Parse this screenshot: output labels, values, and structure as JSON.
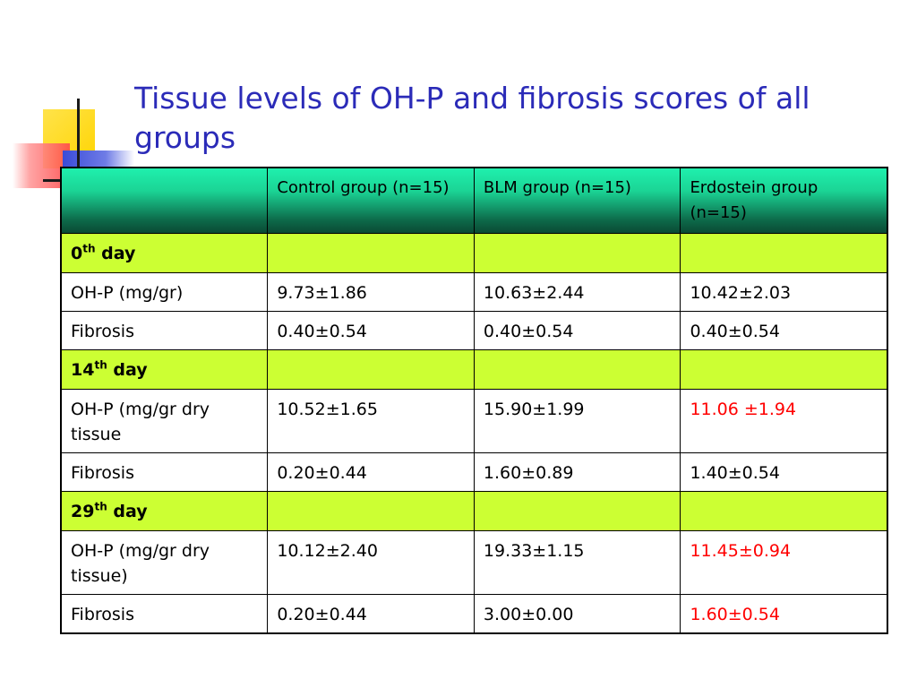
{
  "slide": {
    "title": "Tissue levels of OH-P and fibrosis scores of all groups"
  },
  "table": {
    "headers": [
      "",
      "Control group (n=15)",
      "BLM group (n=15)",
      "Erdostein group (n=15)"
    ],
    "sections": [
      {
        "day_number": "0",
        "day_suffix": "th",
        "day_word": "day",
        "rows": [
          {
            "label": "OH-P (mg/gr)",
            "control": "9.73±1.86",
            "blm": "10.63±2.44",
            "erdostein": "10.42±2.03",
            "erdostein_highlight": false
          },
          {
            "label": "Fibrosis",
            "control": "0.40±0.54",
            "blm": "0.40±0.54",
            "erdostein": "0.40±0.54",
            "erdostein_highlight": false
          }
        ]
      },
      {
        "day_number": "14",
        "day_suffix": "th",
        "day_word": "day",
        "rows": [
          {
            "label": "OH-P (mg/gr dry tissue",
            "control": "10.52±1.65",
            "blm": "15.90±1.99",
            "erdostein": "11.06 ±1.94",
            "erdostein_highlight": true
          },
          {
            "label": "Fibrosis",
            "control": "0.20±0.44",
            "blm": "1.60±0.89",
            "erdostein": "1.40±0.54",
            "erdostein_highlight": false
          }
        ]
      },
      {
        "day_number": "29",
        "day_suffix": "th",
        "day_word": "day",
        "rows": [
          {
            "label": "OH-P (mg/gr dry tissue)",
            "control": "10.12±2.40",
            "blm": "19.33±1.15",
            "erdostein": "11.45±0.94",
            "erdostein_highlight": true
          },
          {
            "label": "Fibrosis",
            "control": "0.20±0.44",
            "blm": "3.00±0.00",
            "erdostein": "1.60±0.54",
            "erdostein_highlight": true
          }
        ]
      }
    ]
  },
  "colors": {
    "title": "#2b2bb8",
    "header_gradient_top": "#1ff0ad",
    "header_gradient_bottom": "#0a4a34",
    "day_row_bg": "#ccff33",
    "highlight_text": "#ff0000"
  }
}
